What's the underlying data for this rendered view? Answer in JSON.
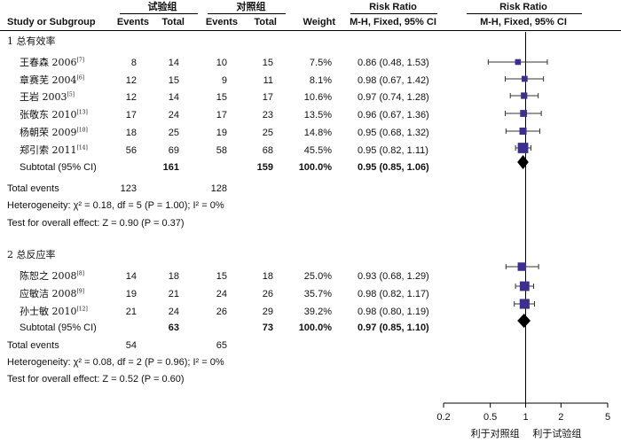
{
  "header": {
    "group1": "试验组",
    "group2": "对照组",
    "col_study": "Study or Subgroup",
    "col_events1": "Events",
    "col_total1": "Total",
    "col_events2": "Events",
    "col_total2": "Total",
    "col_weight": "Weight",
    "col_rr_text": "Risk Ratio",
    "col_rr_text_method": "M-H, Fixed, 95% CI",
    "col_rr_plot": "Risk Ratio",
    "col_rr_plot_method": "M-H, Fixed, 95% CI"
  },
  "subgroups": [
    {
      "title": "1 总有效率",
      "subtotal": {
        "label": "Subtotal (95% CI)",
        "total1": "161",
        "total2": "159",
        "weight": "100.0%",
        "ci": "0.95 (0.85, 1.06)"
      },
      "total_events": {
        "label": "Total events",
        "events1": "123",
        "events2": "128"
      },
      "heterogeneity": "Heterogeneity: χ² = 0.18, df = 5 (P = 1.00); I² = 0%",
      "overall": "Test for overall effect: Z = 0.90 (P = 0.37)"
    },
    {
      "title": "2 总反应率",
      "subtotal": {
        "label": "Subtotal (95% CI)",
        "total1": "63",
        "total2": "73",
        "weight": "100.0%",
        "ci": "0.97 (0.85, 1.10)"
      },
      "total_events": {
        "label": "Total events",
        "events1": "54",
        "events2": "65"
      },
      "heterogeneity": "Heterogeneity: χ² = 0.08, df = 2 (P = 0.96); I² = 0%",
      "overall": "Test for overall effect: Z = 0.52 (P = 0.60)"
    }
  ],
  "studies": [
    {
      "name": "王春森 2006",
      "ref": "[7]",
      "events1": "8",
      "total1": "14",
      "events2": "10",
      "total2": "15",
      "weight": "7.5%",
      "ci": "0.86 (0.48, 1.53)"
    },
    {
      "name": "章赛芜 2004",
      "ref": "[6]",
      "events1": "12",
      "total1": "15",
      "events2": "9",
      "total2": "11",
      "weight": "8.1%",
      "ci": "0.98 (0.67, 1.42)"
    },
    {
      "name": "王岩 2003",
      "ref": "[5]",
      "events1": "12",
      "total1": "14",
      "events2": "15",
      "total2": "17",
      "weight": "10.6%",
      "ci": "0.97 (0.74, 1.28)"
    },
    {
      "name": "张敬东 2010",
      "ref": "[13]",
      "events1": "17",
      "total1": "24",
      "events2": "17",
      "total2": "23",
      "weight": "13.5%",
      "ci": "0.96 (0.67, 1.36)"
    },
    {
      "name": "杨朝荣 2009",
      "ref": "[10]",
      "events1": "18",
      "total1": "25",
      "events2": "19",
      "total2": "25",
      "weight": "14.8%",
      "ci": "0.95 (0.68, 1.32)"
    },
    {
      "name": "郑引索 2011",
      "ref": "[14]",
      "events1": "56",
      "total1": "69",
      "events2": "58",
      "total2": "68",
      "weight": "45.5%",
      "ci": "0.95 (0.82, 1.11)"
    },
    {
      "name": "陈恕之 2008",
      "ref": "[8]",
      "events1": "14",
      "total1": "18",
      "events2": "15",
      "total2": "18",
      "weight": "25.0%",
      "ci": "0.93 (0.68, 1.29)"
    },
    {
      "name": "应敏洁 2008",
      "ref": "[9]",
      "events1": "19",
      "total1": "21",
      "events2": "24",
      "total2": "26",
      "weight": "35.7%",
      "ci": "0.98 (0.82, 1.17)"
    },
    {
      "name": "孙士敏 2010",
      "ref": "[12]",
      "events1": "21",
      "total1": "24",
      "events2": "26",
      "total2": "29",
      "weight": "39.2%",
      "ci": "0.98 (0.80, 1.19)"
    }
  ],
  "axis_labels": {
    "favours_control": "利于对照组",
    "favours_treatment": "利于试验组"
  },
  "chart_data": {
    "type": "scatter",
    "x_scale": "log",
    "xlim": [
      0.2,
      5
    ],
    "x_ticks": [
      0.2,
      0.5,
      1,
      2,
      5
    ],
    "x_tick_labels": [
      "0.2",
      "0.5",
      "1",
      "2",
      "5"
    ],
    "reference_line": 1,
    "square_color": "#3b2f8f",
    "diamond_color": "#000000",
    "points": [
      {
        "rr": 0.86,
        "lo": 0.48,
        "hi": 1.53,
        "weight": 7.5
      },
      {
        "rr": 0.98,
        "lo": 0.67,
        "hi": 1.42,
        "weight": 8.1
      },
      {
        "rr": 0.97,
        "lo": 0.74,
        "hi": 1.28,
        "weight": 10.6
      },
      {
        "rr": 0.96,
        "lo": 0.67,
        "hi": 1.36,
        "weight": 13.5
      },
      {
        "rr": 0.95,
        "lo": 0.68,
        "hi": 1.32,
        "weight": 14.8
      },
      {
        "rr": 0.95,
        "lo": 0.82,
        "hi": 1.11,
        "weight": 45.5
      },
      {
        "rr": 0.93,
        "lo": 0.68,
        "hi": 1.29,
        "weight": 25.0
      },
      {
        "rr": 0.98,
        "lo": 0.82,
        "hi": 1.17,
        "weight": 35.7
      },
      {
        "rr": 0.98,
        "lo": 0.8,
        "hi": 1.19,
        "weight": 39.2
      }
    ],
    "pooled": [
      {
        "rr": 0.95,
        "lo": 0.85,
        "hi": 1.06
      },
      {
        "rr": 0.97,
        "lo": 0.85,
        "hi": 1.1
      }
    ]
  }
}
